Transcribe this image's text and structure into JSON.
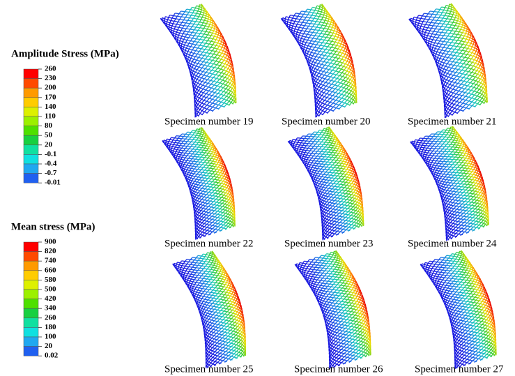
{
  "legends": [
    {
      "title": "Amplitude Stress (MPa)",
      "labels": [
        "260",
        "230",
        "200",
        "170",
        "140",
        "110",
        "80",
        "50",
        "20",
        "-0.1",
        "-0.4",
        "-0.7",
        "-0.01"
      ],
      "colors": [
        "#ff0000",
        "#ff4a00",
        "#ff9a00",
        "#ffcc00",
        "#ddf000",
        "#9cf000",
        "#4ee000",
        "#18d040",
        "#10e0a0",
        "#10e0e0",
        "#20a8f0",
        "#2060f0",
        "#1010e8"
      ]
    },
    {
      "title": "Mean stress (MPa)",
      "labels": [
        "900",
        "820",
        "740",
        "660",
        "580",
        "500",
        "420",
        "340",
        "260",
        "180",
        "100",
        "20",
        "0.02"
      ],
      "colors": [
        "#ff0000",
        "#ff4a00",
        "#ff9a00",
        "#ffcc00",
        "#ddf000",
        "#9cf000",
        "#4ee000",
        "#18d040",
        "#10e0a0",
        "#10e0e0",
        "#20a8f0",
        "#2060f0",
        "#1010e8"
      ]
    }
  ],
  "specimens": [
    {
      "caption": "Specimen number 19"
    },
    {
      "caption": "Specimen number 20"
    },
    {
      "caption": "Specimen number 21"
    },
    {
      "caption": "Specimen number 22"
    },
    {
      "caption": "Specimen number 23"
    },
    {
      "caption": "Specimen number 24"
    },
    {
      "caption": "Specimen number 25"
    },
    {
      "caption": "Specimen number 26"
    },
    {
      "caption": "Specimen number 27"
    }
  ]
}
